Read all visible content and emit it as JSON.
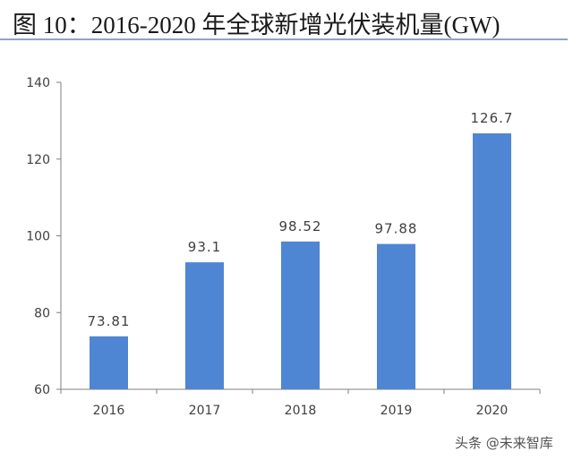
{
  "title": "图 10：2016-2020 年全球新增光伏装机量(GW)",
  "watermark": "头条 @未来智库",
  "chart_data": {
    "type": "bar",
    "categories": [
      "2016",
      "2017",
      "2018",
      "2019",
      "2020"
    ],
    "values": [
      73.81,
      93.1,
      98.52,
      97.88,
      126.7
    ],
    "data_labels": [
      "73.81",
      "93.1",
      "98.52",
      "97.88",
      "126.7"
    ],
    "ylim": [
      60,
      140
    ],
    "yticks": [
      60,
      80,
      100,
      120,
      140
    ],
    "grid": false,
    "legend": "none",
    "bar_color": "#4f86d4"
  }
}
